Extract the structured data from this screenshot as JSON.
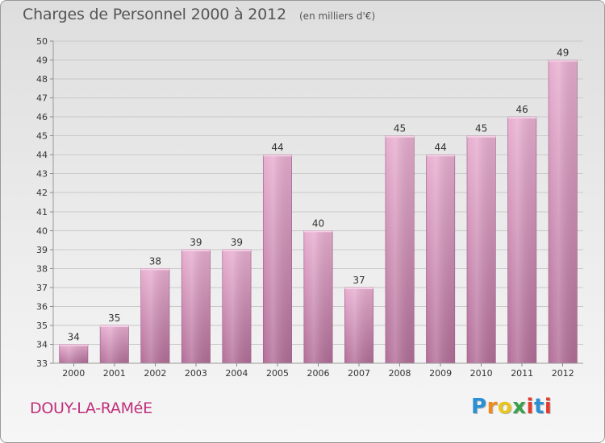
{
  "header": {
    "title": "Charges de Personnel 2000 à 2012",
    "subtitle": "(en milliers d'€)"
  },
  "footer": {
    "commune": "DOUY-LA-RAMéE",
    "logo_text": "Proxiti",
    "logo_colors": [
      "#2a8fd4",
      "#f08a1d",
      "#e8c61a",
      "#3aa14a",
      "#e33b2e",
      "#2a8fd4",
      "#e33b2e"
    ]
  },
  "colors": {
    "bar_light": "#e8aed0",
    "bar_dark": "#b26e98",
    "grid": "#c9c9c9",
    "axis_text": "#333333"
  },
  "chart_data": {
    "type": "bar",
    "title": "Charges de Personnel 2000 à 2012",
    "subtitle": "(en milliers d'€)",
    "categories": [
      "2000",
      "2001",
      "2002",
      "2003",
      "2004",
      "2005",
      "2006",
      "2007",
      "2008",
      "2009",
      "2010",
      "2011",
      "2012"
    ],
    "values": [
      34,
      35,
      38,
      39,
      39,
      44,
      40,
      37,
      45,
      44,
      45,
      46,
      49
    ],
    "ylim": [
      33,
      50
    ],
    "yticks": [
      33,
      34,
      35,
      36,
      37,
      38,
      39,
      40,
      41,
      42,
      43,
      44,
      45,
      46,
      47,
      48,
      49,
      50
    ],
    "grid": true,
    "data_labels": true
  }
}
